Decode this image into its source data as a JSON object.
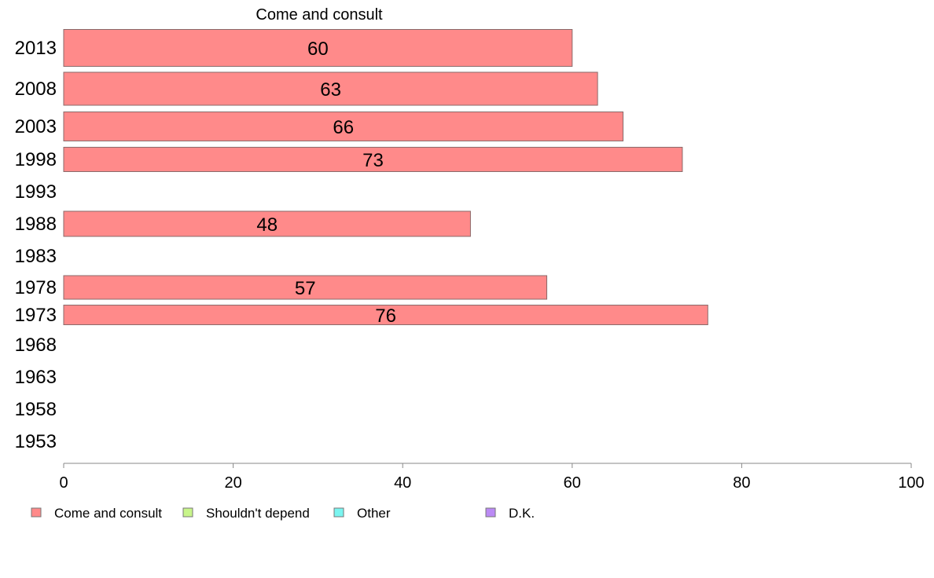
{
  "chart_data": {
    "type": "bar",
    "orientation": "horizontal",
    "panel_title": "Come and consult",
    "categories": [
      "2013",
      "2008",
      "2003",
      "1998",
      "1993",
      "1988",
      "1983",
      "1978",
      "1973",
      "1968",
      "1963",
      "1958",
      "1953"
    ],
    "series": [
      {
        "name": "Come and consult",
        "color": "#ff8a8a",
        "values": [
          60,
          63,
          66,
          73,
          null,
          48,
          null,
          57,
          76,
          null,
          null,
          null,
          null
        ]
      }
    ],
    "xlim": [
      0,
      100
    ],
    "x_ticks": [
      "0",
      "20",
      "40",
      "60",
      "80",
      "100"
    ],
    "legend": {
      "placement": "bottom",
      "items": [
        {
          "label": "Come and consult",
          "color": "#ff8a8a"
        },
        {
          "label": "Shouldn't depend",
          "color": "#c8f58a"
        },
        {
          "label": "Other",
          "color": "#7af5f0"
        },
        {
          "label": "D.K.",
          "color": "#bb8af5"
        }
      ]
    },
    "grid": false
  }
}
